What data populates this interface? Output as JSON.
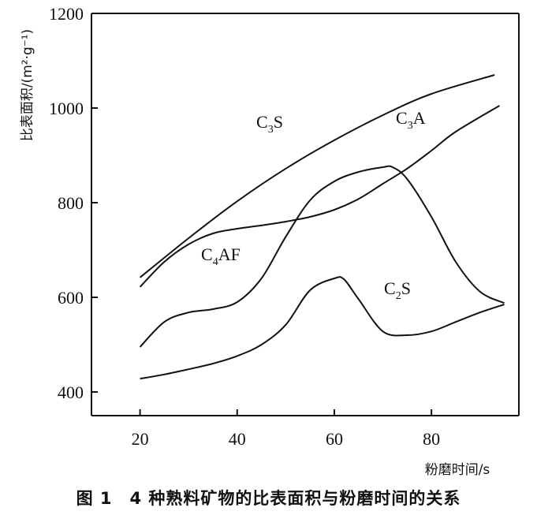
{
  "chart_data": {
    "type": "line",
    "xlabel": "粉磨时间/s",
    "ylabel": "比表面积/(m²·g⁻¹)",
    "xlim": [
      10,
      98
    ],
    "ylim": [
      350,
      1200
    ],
    "xticks": [
      20,
      40,
      60,
      80
    ],
    "yticks": [
      400,
      600,
      800,
      1000,
      1200
    ],
    "series": [
      {
        "name": "C3S",
        "x": [
          20,
          30,
          40,
          50,
          60,
          70,
          80,
          93
        ],
        "y": [
          642,
          725,
          803,
          872,
          932,
          985,
          1030,
          1070
        ]
      },
      {
        "name": "C3A",
        "x": [
          20,
          25,
          30,
          35,
          40,
          45,
          50,
          55,
          60,
          65,
          70,
          75,
          80,
          85,
          94
        ],
        "y": [
          622,
          675,
          712,
          735,
          745,
          752,
          760,
          770,
          785,
          808,
          840,
          872,
          910,
          950,
          1005
        ]
      },
      {
        "name": "C4AF",
        "x": [
          20,
          25,
          30,
          35,
          40,
          45,
          50,
          55,
          60,
          65,
          70,
          72,
          75,
          80,
          85,
          90,
          95
        ],
        "y": [
          495,
          548,
          568,
          575,
          590,
          640,
          728,
          805,
          845,
          865,
          875,
          875,
          850,
          770,
          675,
          612,
          588
        ]
      },
      {
        "name": "C2S",
        "x": [
          20,
          25,
          30,
          35,
          40,
          45,
          50,
          55,
          60,
          62,
          65,
          70,
          75,
          80,
          85,
          90,
          95
        ],
        "y": [
          428,
          437,
          448,
          460,
          476,
          500,
          542,
          615,
          640,
          638,
          596,
          528,
          520,
          528,
          548,
          568,
          585
        ]
      }
    ],
    "series_labels": [
      {
        "base": "C",
        "sub": "3",
        "tail": "S"
      },
      {
        "base": "C",
        "sub": "3",
        "tail": "A"
      },
      {
        "base": "C",
        "sub": "4",
        "tail": "AF"
      },
      {
        "base": "C",
        "sub": "2",
        "tail": "S"
      }
    ]
  },
  "caption": "图 1　4 种熟料矿物的比表面积与粉磨时间的关系"
}
